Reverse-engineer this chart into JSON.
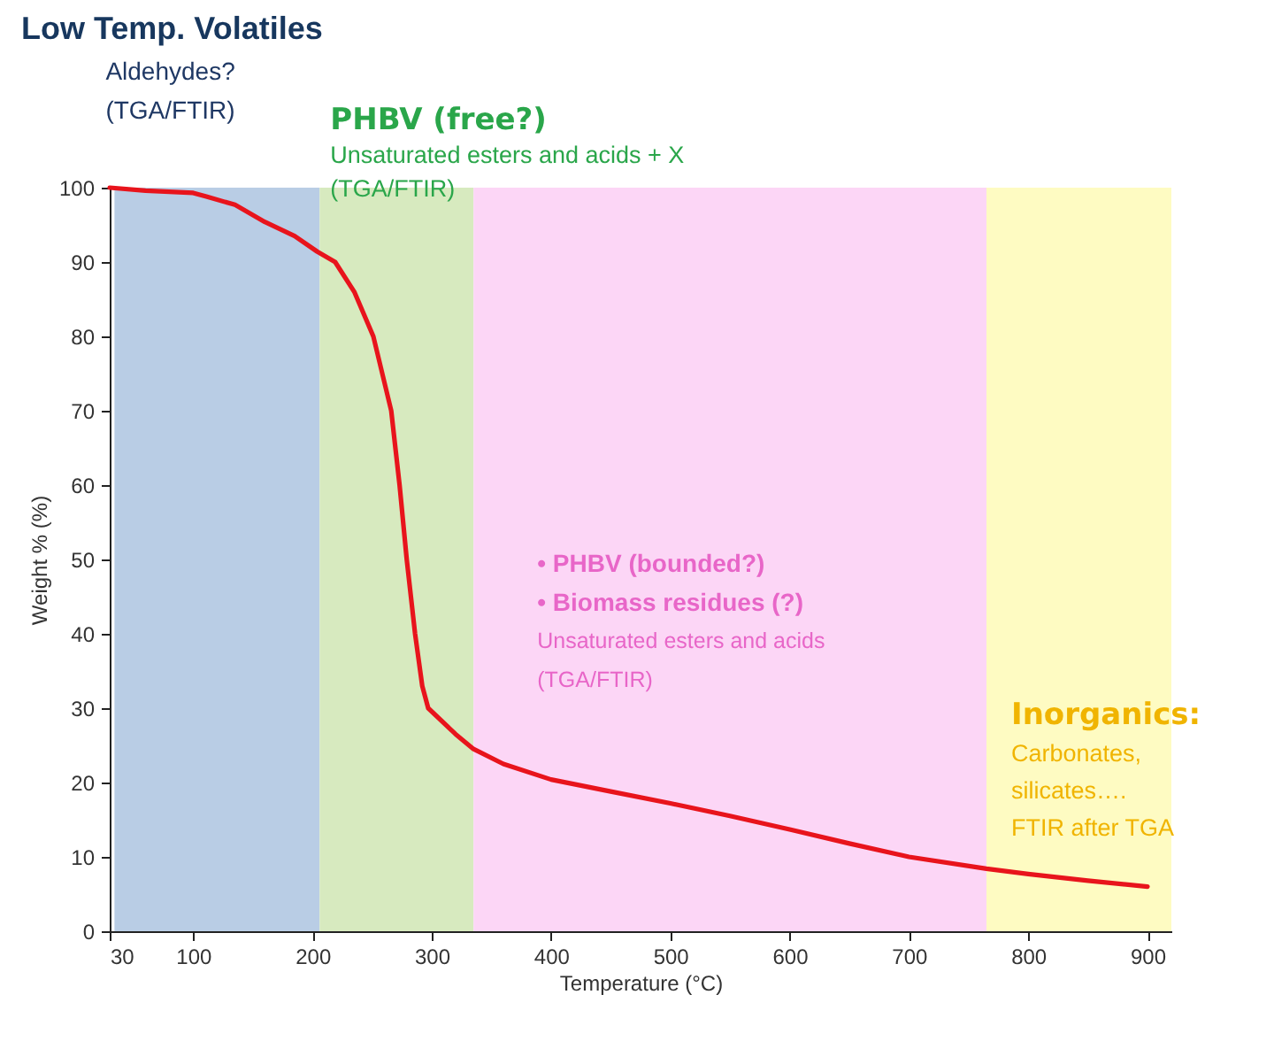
{
  "chart_data": {
    "type": "line",
    "title": "Low Temp. Volatiles",
    "xlabel": "Temperature (°C)",
    "ylabel": "Weight % (%)",
    "xlim": [
      30,
      920
    ],
    "ylim": [
      0,
      100
    ],
    "xticks": [
      30,
      100,
      200,
      300,
      400,
      500,
      600,
      700,
      800,
      900
    ],
    "yticks": [
      0,
      10,
      20,
      30,
      40,
      50,
      60,
      70,
      80,
      90,
      100
    ],
    "grid": false,
    "line_style": "solid",
    "series": [
      {
        "color": "#e8141c",
        "x": [
          30,
          60,
          100,
          111,
          135,
          160,
          185,
          204,
          219,
          235,
          251,
          266,
          273,
          279,
          286,
          292,
          297,
          320,
          335,
          360,
          400,
          450,
          500,
          550,
          600,
          650,
          700,
          765,
          800,
          850,
          900
        ],
        "values": [
          100,
          99.6,
          99.3,
          98.8,
          97.7,
          95.4,
          93.5,
          91.4,
          90,
          86,
          80,
          70,
          60,
          50,
          40,
          33,
          30,
          26.5,
          24.5,
          22.5,
          20.4,
          18.8,
          17.2,
          15.5,
          13.7,
          11.8,
          10,
          8.4,
          7.7,
          6.8,
          6
        ]
      }
    ],
    "bands": [
      {
        "axis": "x",
        "from": 34,
        "to": 206,
        "color": "#b9cde5",
        "label": "Aldehydes?\n(TGA/FTIR)"
      },
      {
        "axis": "x",
        "from": 206,
        "to": 335,
        "color": "#d7eabf",
        "label": "PHBV (free?)\nUnsaturated esters and acids + X\n(TGA/FTIR)"
      },
      {
        "axis": "x",
        "from": 335,
        "to": 765,
        "color": "#fcd6f6",
        "label": "•   PHBV (bounded?)\n•   Biomass residues (?)\nUnsaturated esters and acids\n(TGA/FTIR)"
      },
      {
        "axis": "x",
        "from": 765,
        "to": 920,
        "color": "#fefbc2",
        "label": "Inorganics:\nCarbonates,\nsilicates….\nFTIR after TGA"
      }
    ]
  }
}
